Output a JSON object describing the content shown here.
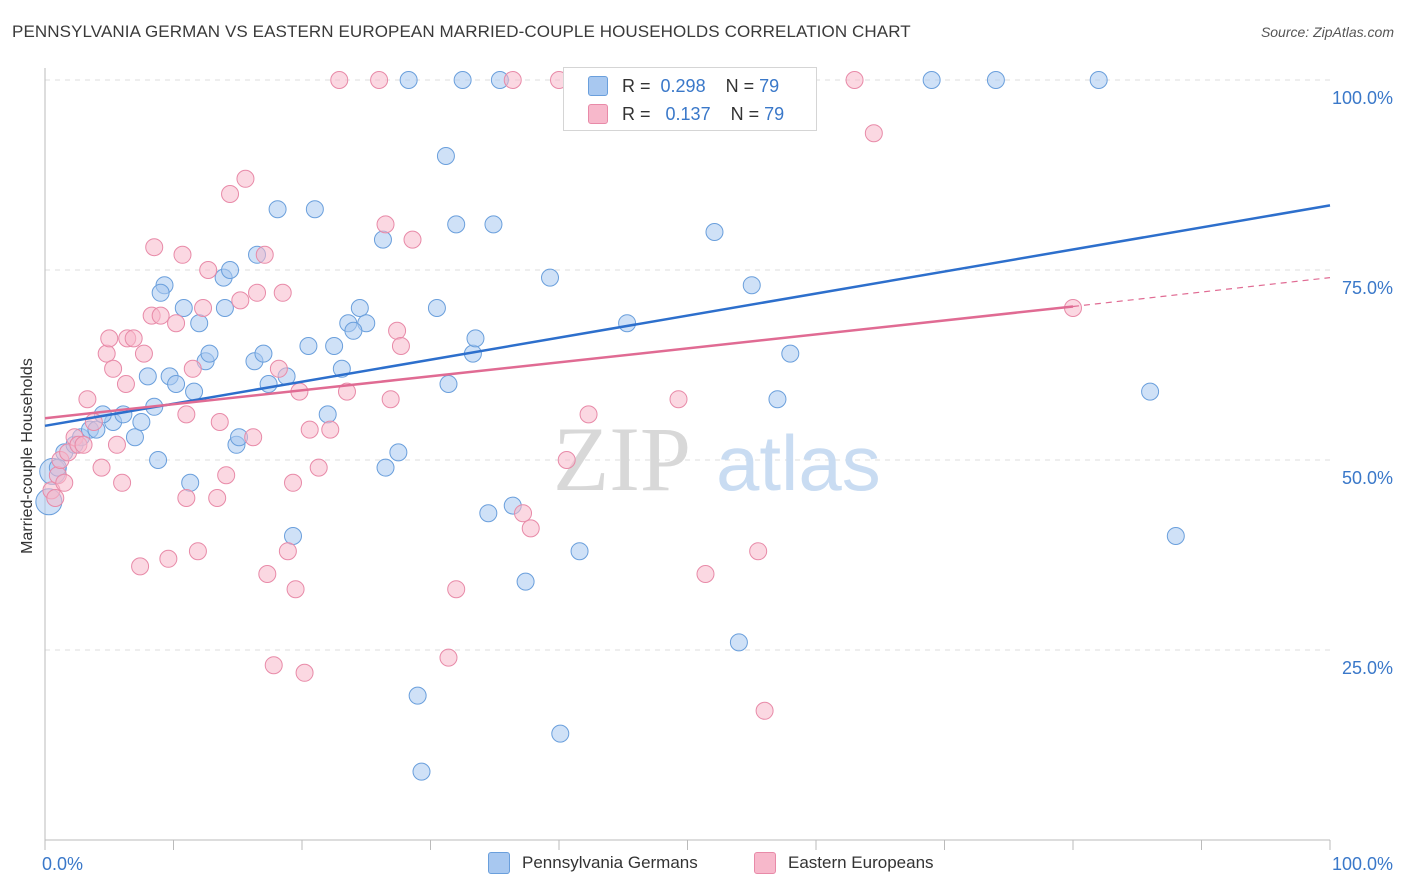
{
  "title": "PENNSYLVANIA GERMAN VS EASTERN EUROPEAN MARRIED-COUPLE HOUSEHOLDS CORRELATION CHART",
  "source": "Source: ZipAtlas.com",
  "watermark": {
    "zip": "ZIP",
    "atlas": "atlas"
  },
  "legend": {
    "rows": [
      {
        "r_label": "R =",
        "r_value": "0.298",
        "n_label": "N =",
        "n_value": "79",
        "color": "#a8c8f0"
      },
      {
        "r_label": "R =",
        "r_value": "0.137",
        "n_label": "N =",
        "n_value": "79",
        "color": "#f7b8cb"
      }
    ]
  },
  "bottom_legend": [
    {
      "label": "Pennsylvania Germans",
      "color": "#a8c8f0"
    },
    {
      "label": "Eastern Europeans",
      "color": "#f7b8cb"
    }
  ],
  "chart_data": {
    "type": "scatter",
    "title": "PENNSYLVANIA GERMAN VS EASTERN EUROPEAN MARRIED-COUPLE HOUSEHOLDS CORRELATION CHART",
    "xlabel": "",
    "ylabel": "Married-couple Households",
    "xlim": [
      0,
      100
    ],
    "ylim": [
      0,
      100
    ],
    "x_tick_labels": [
      "0.0%",
      "100.0%"
    ],
    "y_tick_labels": [
      "25.0%",
      "50.0%",
      "75.0%",
      "100.0%"
    ],
    "y_ticks": [
      25,
      50,
      75,
      100
    ],
    "grid": "horizontal dashed",
    "legend_position": "top-center",
    "series": [
      {
        "name": "Pennsylvania Germans",
        "color": "#6a9fdc",
        "fill": "#a8c8f0",
        "trend": {
          "x": [
            0,
            100
          ],
          "y": [
            54.5,
            83.5
          ],
          "style": "solid",
          "color": "#2d6fcc"
        },
        "points": [
          [
            0.3,
            44.5
          ],
          [
            0.6,
            48.5
          ],
          [
            1.0,
            49
          ],
          [
            1.5,
            51
          ],
          [
            2.3,
            52
          ],
          [
            2.8,
            53
          ],
          [
            3.5,
            54
          ],
          [
            4.0,
            54
          ],
          [
            5.3,
            55
          ],
          [
            6.1,
            56
          ],
          [
            7.0,
            53
          ],
          [
            7.5,
            55
          ],
          [
            8.0,
            61
          ],
          [
            8.5,
            57
          ],
          [
            8.8,
            50
          ],
          [
            9.3,
            73
          ],
          [
            9.7,
            61
          ],
          [
            10.2,
            60
          ],
          [
            10.8,
            70
          ],
          [
            11.3,
            47
          ],
          [
            11.6,
            59
          ],
          [
            12.0,
            68
          ],
          [
            12.5,
            63
          ],
          [
            12.8,
            64
          ],
          [
            13.9,
            74
          ],
          [
            14.4,
            75
          ],
          [
            14.9,
            52
          ],
          [
            15.1,
            53
          ],
          [
            16.3,
            63
          ],
          [
            16.5,
            77
          ],
          [
            17.0,
            64
          ],
          [
            17.4,
            60
          ],
          [
            18.1,
            83
          ],
          [
            18.8,
            61
          ],
          [
            19.3,
            40
          ],
          [
            20.5,
            65
          ],
          [
            21.0,
            83
          ],
          [
            22.0,
            56
          ],
          [
            22.5,
            65
          ],
          [
            23.1,
            62
          ],
          [
            23.6,
            68
          ],
          [
            24.5,
            70
          ],
          [
            25.0,
            68
          ],
          [
            26.3,
            79
          ],
          [
            26.5,
            49
          ],
          [
            27.5,
            51
          ],
          [
            28.3,
            100
          ],
          [
            29.0,
            19
          ],
          [
            29.3,
            9
          ],
          [
            30.5,
            70
          ],
          [
            31.2,
            90
          ],
          [
            31.4,
            60
          ],
          [
            32.0,
            81
          ],
          [
            32.5,
            100
          ],
          [
            33.3,
            64
          ],
          [
            33.5,
            66
          ],
          [
            34.5,
            43
          ],
          [
            34.9,
            81
          ],
          [
            35.4,
            100
          ],
          [
            36.4,
            44
          ],
          [
            37.4,
            34
          ],
          [
            39.3,
            74
          ],
          [
            40.1,
            14
          ],
          [
            41.6,
            38
          ],
          [
            45.3,
            68
          ],
          [
            52.1,
            80
          ],
          [
            54.0,
            26
          ],
          [
            55.0,
            73
          ],
          [
            57.0,
            58
          ],
          [
            58.0,
            64
          ],
          [
            69.0,
            100
          ],
          [
            74.0,
            100
          ],
          [
            82.0,
            100
          ],
          [
            86.0,
            59
          ],
          [
            88.0,
            40
          ],
          [
            4.5,
            56
          ],
          [
            9.0,
            72
          ],
          [
            14.0,
            70
          ],
          [
            24.0,
            67
          ]
        ]
      },
      {
        "name": "Eastern Europeans",
        "color": "#e88aa8",
        "fill": "#f7b8cb",
        "trend": {
          "x": [
            0,
            80,
            100
          ],
          "y": [
            55.5,
            70.2,
            74
          ],
          "style": "solid-then-dashed",
          "color": "#e06b93"
        },
        "points": [
          [
            0.5,
            46
          ],
          [
            0.8,
            45
          ],
          [
            1.0,
            48
          ],
          [
            1.2,
            50
          ],
          [
            1.8,
            51
          ],
          [
            2.3,
            53
          ],
          [
            2.6,
            52
          ],
          [
            3.3,
            58
          ],
          [
            3.8,
            55
          ],
          [
            4.4,
            49
          ],
          [
            4.8,
            64
          ],
          [
            5.0,
            66
          ],
          [
            5.3,
            62
          ],
          [
            5.6,
            52
          ],
          [
            6.0,
            47
          ],
          [
            6.4,
            66
          ],
          [
            6.9,
            66
          ],
          [
            7.4,
            36
          ],
          [
            7.7,
            64
          ],
          [
            8.3,
            69
          ],
          [
            8.5,
            78
          ],
          [
            9.0,
            69
          ],
          [
            9.6,
            37
          ],
          [
            10.2,
            68
          ],
          [
            10.7,
            77
          ],
          [
            11.0,
            56
          ],
          [
            11.5,
            62
          ],
          [
            11.9,
            38
          ],
          [
            12.3,
            70
          ],
          [
            12.7,
            75
          ],
          [
            13.4,
            45
          ],
          [
            13.6,
            55
          ],
          [
            14.1,
            48
          ],
          [
            14.4,
            85
          ],
          [
            15.2,
            71
          ],
          [
            15.6,
            87
          ],
          [
            16.2,
            53
          ],
          [
            16.5,
            72
          ],
          [
            17.1,
            77
          ],
          [
            17.3,
            35
          ],
          [
            17.8,
            23
          ],
          [
            18.2,
            62
          ],
          [
            18.5,
            72
          ],
          [
            18.9,
            38
          ],
          [
            19.3,
            47
          ],
          [
            19.5,
            33
          ],
          [
            19.8,
            59
          ],
          [
            20.2,
            22
          ],
          [
            20.6,
            54
          ],
          [
            21.3,
            49
          ],
          [
            22.2,
            54
          ],
          [
            22.9,
            100
          ],
          [
            23.5,
            59
          ],
          [
            26.0,
            100
          ],
          [
            26.5,
            81
          ],
          [
            26.9,
            58
          ],
          [
            27.4,
            67
          ],
          [
            27.7,
            65
          ],
          [
            28.6,
            79
          ],
          [
            31.4,
            24
          ],
          [
            32.0,
            33
          ],
          [
            36.4,
            100
          ],
          [
            37.2,
            43
          ],
          [
            37.8,
            41
          ],
          [
            40.0,
            100
          ],
          [
            40.6,
            50
          ],
          [
            42.3,
            56
          ],
          [
            47.1,
            100
          ],
          [
            49.3,
            58
          ],
          [
            51.4,
            35
          ],
          [
            55.5,
            38
          ],
          [
            56.0,
            17
          ],
          [
            63.0,
            100
          ],
          [
            64.5,
            93
          ],
          [
            80.0,
            70
          ],
          [
            1.5,
            47
          ],
          [
            3.0,
            52
          ],
          [
            11.0,
            45
          ],
          [
            6.3,
            60
          ]
        ]
      }
    ]
  }
}
